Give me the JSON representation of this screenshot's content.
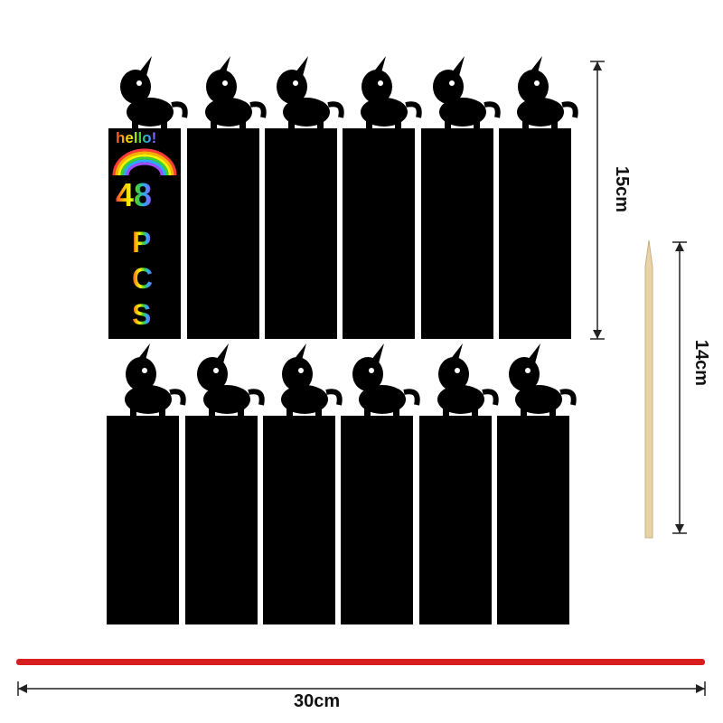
{
  "product": {
    "card_text": {
      "greeting": "hello!",
      "count": "48",
      "unit_letters": [
        "P",
        "C",
        "S"
      ]
    },
    "dimensions": {
      "card_height": "15cm",
      "stick_length": "14cm",
      "ribbon_length": "30cm"
    },
    "colors": {
      "card": "#000000",
      "ribbon": "#d81e1e",
      "stick": "#e8d3a8"
    }
  }
}
